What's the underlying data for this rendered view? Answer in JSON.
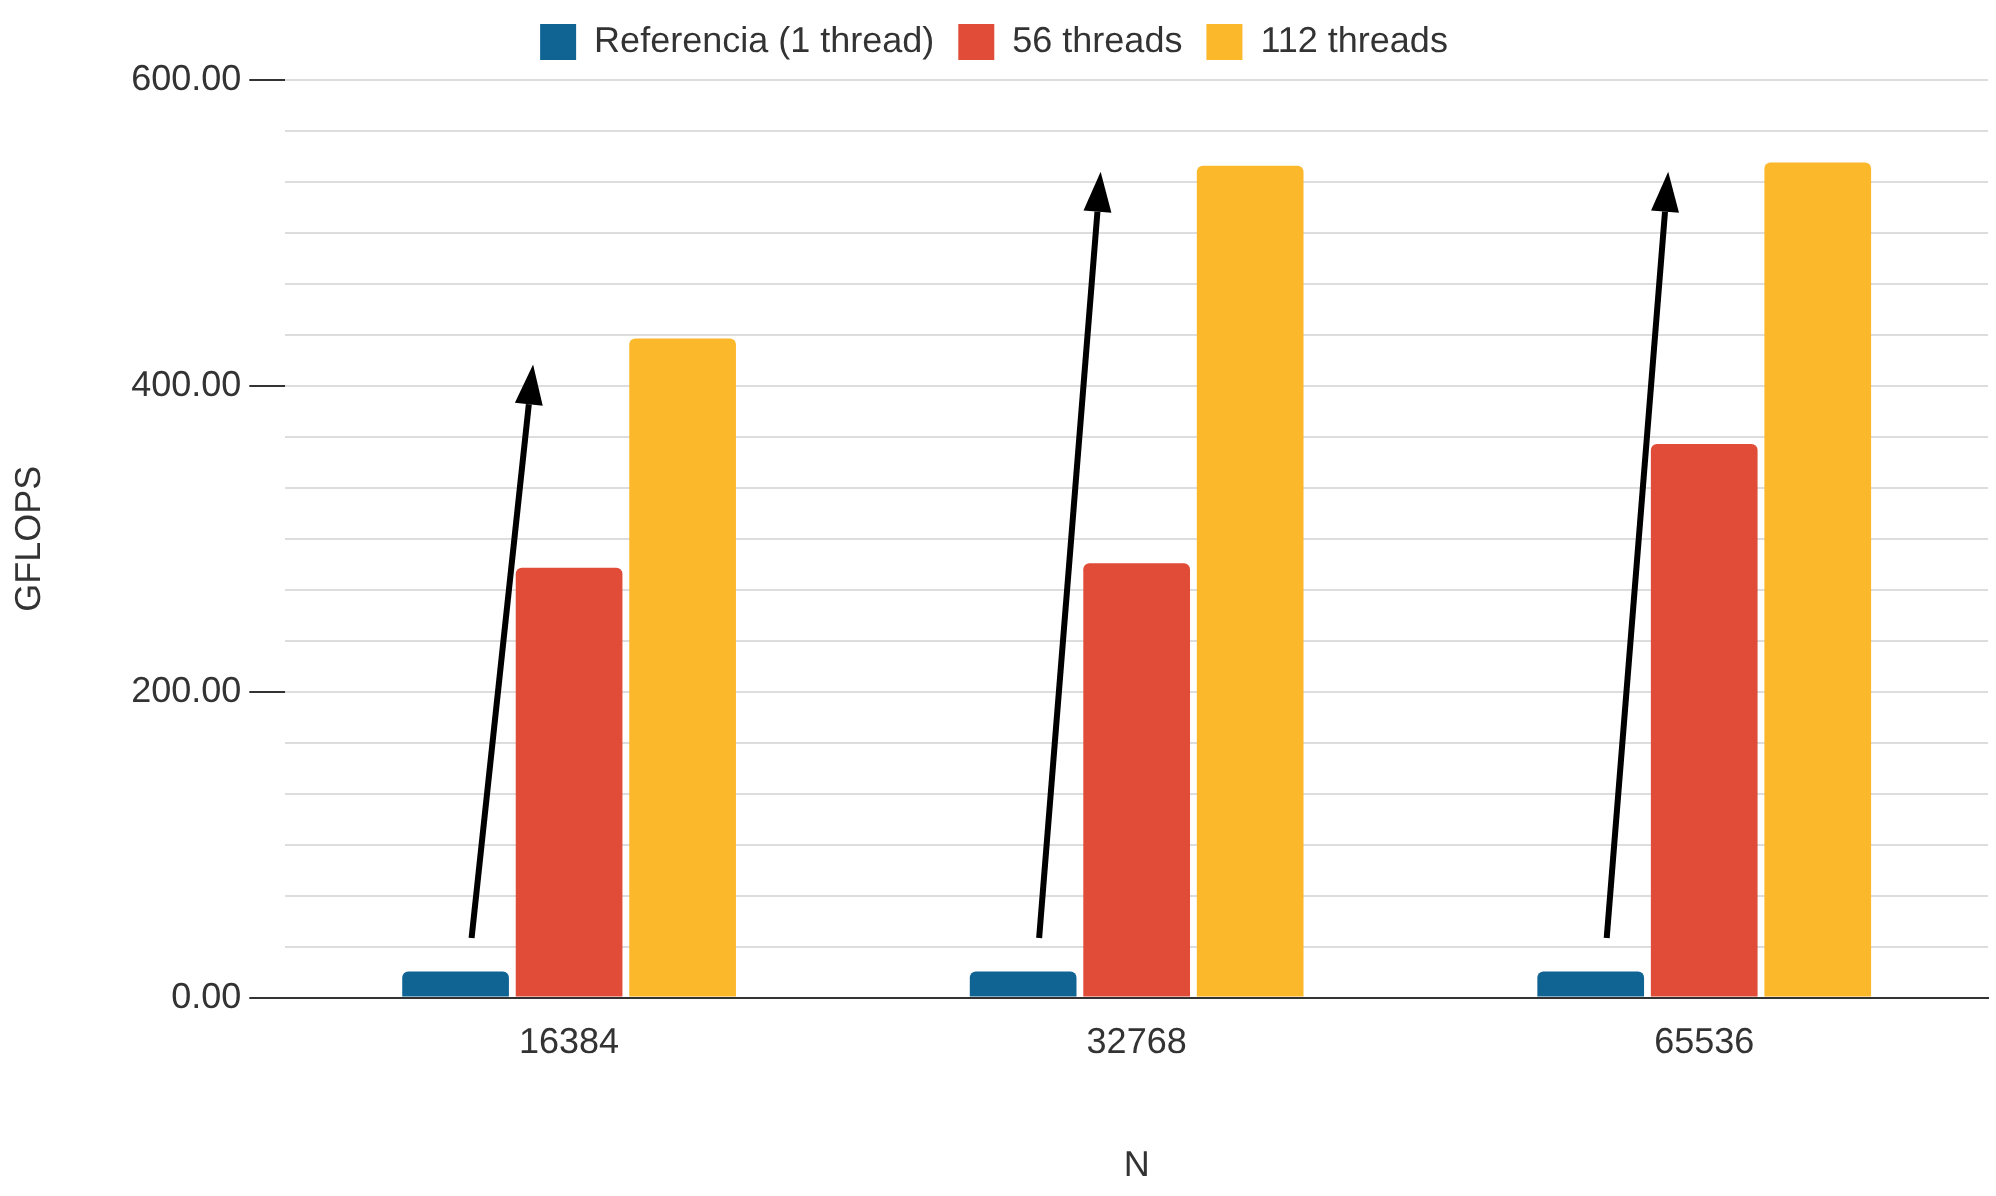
{
  "chart_data": {
    "type": "bar",
    "xlabel": "N",
    "ylabel": "GFLOPS",
    "categories": [
      "16384",
      "32768",
      "65536"
    ],
    "series": [
      {
        "name": "Referencia (1 thread)",
        "color": "#0f6494",
        "values": [
          17,
          17,
          17
        ]
      },
      {
        "name": "56 threads",
        "color": "#e04c38",
        "values": [
          281,
          284,
          362
        ]
      },
      {
        "name": "112 threads",
        "color": "#fbb82b",
        "values": [
          431,
          544,
          546
        ]
      }
    ],
    "ylim": [
      0,
      600
    ],
    "yticks": [
      {
        "value": 0,
        "label": "0.00"
      },
      {
        "value": 33.3,
        "label": null
      },
      {
        "value": 66.7,
        "label": null
      },
      {
        "value": 100,
        "label": null
      },
      {
        "value": 133.3,
        "label": null
      },
      {
        "value": 166.7,
        "label": null
      },
      {
        "value": 200,
        "label": "200.00"
      },
      {
        "value": 233.3,
        "label": null
      },
      {
        "value": 266.7,
        "label": null
      },
      {
        "value": 300,
        "label": null
      },
      {
        "value": 333.3,
        "label": null
      },
      {
        "value": 366.7,
        "label": null
      },
      {
        "value": 400,
        "label": "400.00"
      },
      {
        "value": 433.3,
        "label": null
      },
      {
        "value": 466.7,
        "label": null
      },
      {
        "value": 500,
        "label": null
      },
      {
        "value": 533.3,
        "label": null
      },
      {
        "value": 566.7,
        "label": null
      },
      {
        "value": 600,
        "label": "600.00"
      }
    ],
    "grid": "y",
    "legend": "top"
  }
}
